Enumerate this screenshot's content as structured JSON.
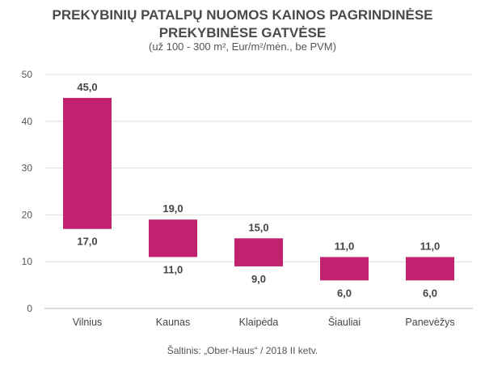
{
  "chart_data": {
    "type": "bar",
    "subtype": "floating-range",
    "title": "PREKYBINIŲ PATALPŲ NUOMOS KAINOS PAGRINDINĖSE PREKYBINĖSE GATVĖSE",
    "title_lines": [
      "PREKYBINIŲ PATALPŲ NUOMOS KAINOS PAGRINDINĖSE",
      "PREKYBINĖSE GATVĖSE"
    ],
    "subtitle": "(už 100 - 300 m², Eur/m²/mėn., be PVM)",
    "source": "Šaltinis: „Ober-Haus“  / 2018 II ketv.",
    "categories": [
      "Vilnius",
      "Kaunas",
      "Klaipėda",
      "Šiauliai",
      "Panevėžys"
    ],
    "min_values": [
      17.0,
      11.0,
      9.0,
      6.0,
      6.0
    ],
    "max_values": [
      45.0,
      19.0,
      15.0,
      11.0,
      11.0
    ],
    "min_labels": [
      "17,0",
      "11,0",
      "9,0",
      "6,0",
      "6,0"
    ],
    "max_labels": [
      "45,0",
      "19,0",
      "15,0",
      "11,0",
      "11,0"
    ],
    "ylim": [
      0,
      50
    ],
    "yticks": [
      "0",
      "10",
      "20",
      "30",
      "40",
      "50"
    ],
    "grid": true,
    "xlabel": "",
    "ylabel": "",
    "bar_color": "#c0226f"
  }
}
